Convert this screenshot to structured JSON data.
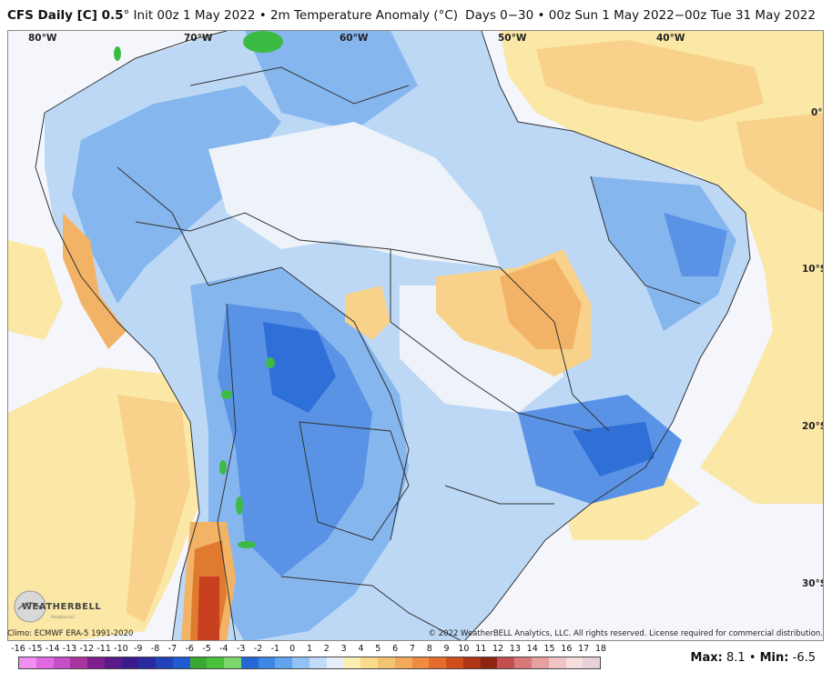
{
  "header": {
    "model": "CFS Daily [C] 0.5",
    "init_text": "° Init 00z 1 May 2022 • 2m Temperature Anomaly (°C)",
    "valid_text": "Days 0−30 • 00z Sun 1 May 2022−00z Tue 31 May 2022"
  },
  "map": {
    "lon_labels": [
      "80°W",
      "70°W",
      "60°W",
      "50°W",
      "40°W"
    ],
    "lat_labels": [
      "0°",
      "10°S",
      "20°S",
      "30°S"
    ],
    "colors": {
      "ocean_neutral": "#f4f6fb",
      "land_neutral": "#eef3fa",
      "light_blue": "#bcd8f5",
      "mid_blue": "#86b6ee",
      "blue": "#5a93e6",
      "deep_blue": "#2f6fd8",
      "green": "#3cbb44",
      "light_yellow": "#fbe7a6",
      "tan": "#f8d18a",
      "orange": "#f3b366",
      "dark_orange": "#e07a2e",
      "red": "#c8401f",
      "border": "#333333"
    }
  },
  "footer": {
    "climo": "Climo: ECMWF ERA-5 1991-2020",
    "copyright": "© 2022 WeatherBELL Analytics, LLC. All rights reserved. License required for commercial distribution.",
    "logo_text": "WEATHERBELL",
    "logo_sub": "Analytics LLC"
  },
  "colorbar": {
    "ticks": [
      "-16",
      "-15",
      "-14",
      "-13",
      "-12",
      "-11",
      "-10",
      "-9",
      "-8",
      "-7",
      "-6",
      "-5",
      "-4",
      "-3",
      "-2",
      "-1",
      "0",
      "1",
      "2",
      "3",
      "4",
      "5",
      "6",
      "7",
      "8",
      "9",
      "10",
      "11",
      "12",
      "13",
      "14",
      "15",
      "16",
      "17",
      "18"
    ],
    "swatch_colors": [
      "#f08ff0",
      "#e068e0",
      "#c84ec8",
      "#a8349f",
      "#7f1e8f",
      "#5a1a8a",
      "#3b1a8c",
      "#2a2aa0",
      "#2242b8",
      "#1f5ad0",
      "#3aa832",
      "#48c23c",
      "#7cd86c",
      "#2468d8",
      "#3c86e6",
      "#62a4ee",
      "#92c2f4",
      "#c0dcf8",
      "#e6eefa",
      "#fbefb0",
      "#f8dc8c",
      "#f5c472",
      "#f2aa58",
      "#ee8c40",
      "#e46c2c",
      "#d04e1e",
      "#b03418",
      "#8e2414",
      "#c25050",
      "#d87878",
      "#e6a0a0",
      "#f0c4c4",
      "#f6dede",
      "#e8d0d8"
    ]
  },
  "stats": {
    "max_label": "Max:",
    "max_value": "8.1",
    "sep": "•",
    "min_label": "Min:",
    "min_value": "-6.5"
  }
}
